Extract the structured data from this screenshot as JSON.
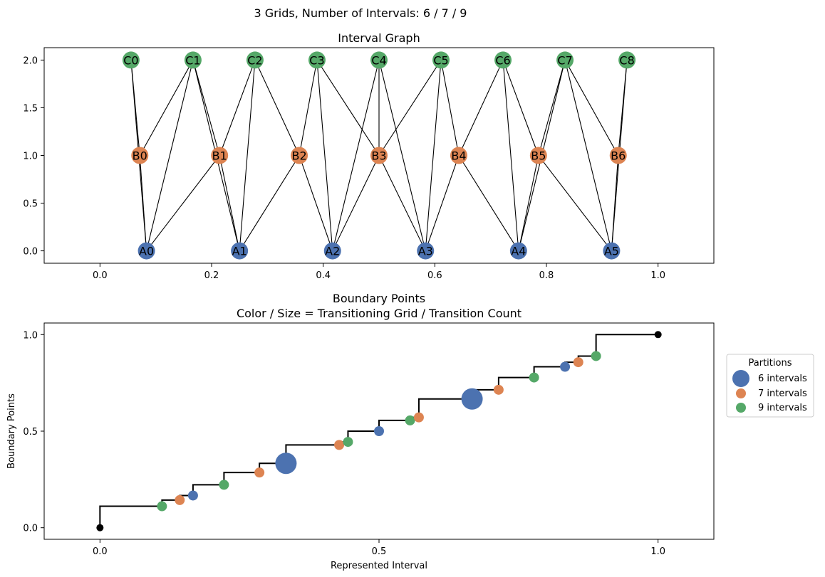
{
  "suptitle": "3 Grids, Number of Intervals: 6 / 7 / 9",
  "chart_data": [
    {
      "type": "scatter",
      "subtype": "graph",
      "title": "Interval Graph",
      "xlim": [
        -0.1,
        1.1
      ],
      "ylim": [
        -0.13,
        2.13
      ],
      "xticks": [
        0.0,
        0.2,
        0.4,
        0.6,
        0.8,
        1.0
      ],
      "yticks": [
        0.0,
        0.5,
        1.0,
        1.5,
        2.0
      ],
      "xtick_labels": [
        "0.0",
        "0.2",
        "0.4",
        "0.6",
        "0.8",
        "1.0"
      ],
      "ytick_labels": [
        "0.0",
        "0.5",
        "1.0",
        "1.5",
        "2.0"
      ],
      "grid": false,
      "colors": {
        "A": "#4c72b0",
        "B": "#dd8452",
        "C": "#55a868"
      },
      "nodes": [
        {
          "id": "A0",
          "x": 0.0833,
          "y": 0
        },
        {
          "id": "A1",
          "x": 0.25,
          "y": 0
        },
        {
          "id": "A2",
          "x": 0.4167,
          "y": 0
        },
        {
          "id": "A3",
          "x": 0.5833,
          "y": 0
        },
        {
          "id": "A4",
          "x": 0.75,
          "y": 0
        },
        {
          "id": "A5",
          "x": 0.9167,
          "y": 0
        },
        {
          "id": "B0",
          "x": 0.0714,
          "y": 1
        },
        {
          "id": "B1",
          "x": 0.2143,
          "y": 1
        },
        {
          "id": "B2",
          "x": 0.3571,
          "y": 1
        },
        {
          "id": "B3",
          "x": 0.5,
          "y": 1
        },
        {
          "id": "B4",
          "x": 0.6429,
          "y": 1
        },
        {
          "id": "B5",
          "x": 0.7857,
          "y": 1
        },
        {
          "id": "B6",
          "x": 0.9286,
          "y": 1
        },
        {
          "id": "C0",
          "x": 0.0556,
          "y": 2
        },
        {
          "id": "C1",
          "x": 0.1667,
          "y": 2
        },
        {
          "id": "C2",
          "x": 0.2778,
          "y": 2
        },
        {
          "id": "C3",
          "x": 0.3889,
          "y": 2
        },
        {
          "id": "C4",
          "x": 0.5,
          "y": 2
        },
        {
          "id": "C5",
          "x": 0.6111,
          "y": 2
        },
        {
          "id": "C6",
          "x": 0.7222,
          "y": 2
        },
        {
          "id": "C7",
          "x": 0.8333,
          "y": 2
        },
        {
          "id": "C8",
          "x": 0.9444,
          "y": 2
        }
      ],
      "edges": [
        [
          "A0",
          "B0"
        ],
        [
          "A0",
          "B1"
        ],
        [
          "A1",
          "B1"
        ],
        [
          "A1",
          "B2"
        ],
        [
          "A2",
          "B2"
        ],
        [
          "A2",
          "B3"
        ],
        [
          "A3",
          "B3"
        ],
        [
          "A3",
          "B4"
        ],
        [
          "A4",
          "B4"
        ],
        [
          "A4",
          "B5"
        ],
        [
          "A5",
          "B5"
        ],
        [
          "A5",
          "B6"
        ],
        [
          "A0",
          "C0"
        ],
        [
          "A0",
          "C1"
        ],
        [
          "A1",
          "C1"
        ],
        [
          "A1",
          "C2"
        ],
        [
          "A2",
          "C3"
        ],
        [
          "A2",
          "C4"
        ],
        [
          "A3",
          "C4"
        ],
        [
          "A3",
          "C5"
        ],
        [
          "A4",
          "C6"
        ],
        [
          "A4",
          "C7"
        ],
        [
          "A5",
          "C7"
        ],
        [
          "A5",
          "C8"
        ],
        [
          "B0",
          "C0"
        ],
        [
          "B0",
          "C1"
        ],
        [
          "B1",
          "C1"
        ],
        [
          "B1",
          "C2"
        ],
        [
          "B2",
          "C2"
        ],
        [
          "B2",
          "C3"
        ],
        [
          "B3",
          "C3"
        ],
        [
          "B3",
          "C4"
        ],
        [
          "B3",
          "C5"
        ],
        [
          "B4",
          "C5"
        ],
        [
          "B4",
          "C6"
        ],
        [
          "B5",
          "C6"
        ],
        [
          "B5",
          "C7"
        ],
        [
          "B6",
          "C7"
        ],
        [
          "B6",
          "C8"
        ]
      ]
    },
    {
      "type": "scatter",
      "subtype": "step",
      "title": "Boundary Points",
      "subtitle": "Color / Size = Transitioning Grid / Transition Count",
      "xlabel": "Represented Interval",
      "ylabel": "Boundary Points",
      "xlim": [
        -0.1,
        1.1
      ],
      "ylim": [
        -0.06,
        1.06
      ],
      "xticks": [
        0.0,
        0.5,
        1.0
      ],
      "yticks": [
        0.0,
        0.5,
        1.0
      ],
      "xtick_labels": [
        "0.0",
        "0.5",
        "1.0"
      ],
      "ytick_labels": [
        "0.0",
        "0.5",
        "1.0"
      ],
      "grid": false,
      "legend": {
        "title": "Partitions",
        "placement": "right",
        "entries": [
          {
            "label": "6 intervals",
            "color": "#4c72b0",
            "size": "large"
          },
          {
            "label": "7 intervals",
            "color": "#dd8452",
            "size": "small"
          },
          {
            "label": "9 intervals",
            "color": "#55a868",
            "size": "small"
          }
        ]
      },
      "step_points": [
        [
          0,
          0
        ],
        [
          0,
          0.1111
        ],
        [
          0.1111,
          0.1111
        ],
        [
          0.1111,
          0.1429
        ],
        [
          0.1429,
          0.1429
        ],
        [
          0.1429,
          0.1667
        ],
        [
          0.1667,
          0.1667
        ],
        [
          0.1667,
          0.2222
        ],
        [
          0.2222,
          0.2222
        ],
        [
          0.2222,
          0.2857
        ],
        [
          0.2857,
          0.2857
        ],
        [
          0.2857,
          0.3333
        ],
        [
          0.3333,
          0.3333
        ],
        [
          0.3333,
          0.4286
        ],
        [
          0.4286,
          0.4286
        ],
        [
          0.4286,
          0.4444
        ],
        [
          0.4444,
          0.4444
        ],
        [
          0.4444,
          0.5
        ],
        [
          0.5,
          0.5
        ],
        [
          0.5,
          0.5556
        ],
        [
          0.5556,
          0.5556
        ],
        [
          0.5556,
          0.5714
        ],
        [
          0.5714,
          0.5714
        ],
        [
          0.5714,
          0.6667
        ],
        [
          0.6667,
          0.6667
        ],
        [
          0.6667,
          0.7143
        ],
        [
          0.7143,
          0.7143
        ],
        [
          0.7143,
          0.7778
        ],
        [
          0.7778,
          0.7778
        ],
        [
          0.7778,
          0.8333
        ],
        [
          0.8333,
          0.8333
        ],
        [
          0.8333,
          0.8571
        ],
        [
          0.8571,
          0.8571
        ],
        [
          0.8571,
          0.8889
        ],
        [
          0.8889,
          0.8889
        ],
        [
          0.8889,
          1.0
        ],
        [
          1.0,
          1.0
        ]
      ],
      "endpoints": [
        [
          0,
          0
        ],
        [
          1,
          1
        ]
      ],
      "points": [
        {
          "x": 0.1111,
          "y": 0.1111,
          "grid": "9 intervals",
          "count": 1
        },
        {
          "x": 0.1429,
          "y": 0.1429,
          "grid": "7 intervals",
          "count": 1
        },
        {
          "x": 0.1667,
          "y": 0.1667,
          "grid": "6 intervals",
          "count": 1
        },
        {
          "x": 0.2222,
          "y": 0.2222,
          "grid": "9 intervals",
          "count": 1
        },
        {
          "x": 0.2857,
          "y": 0.2857,
          "grid": "7 intervals",
          "count": 1
        },
        {
          "x": 0.3333,
          "y": 0.3333,
          "grid": "6 intervals",
          "count": 2
        },
        {
          "x": 0.4286,
          "y": 0.4286,
          "grid": "7 intervals",
          "count": 1
        },
        {
          "x": 0.4444,
          "y": 0.4444,
          "grid": "9 intervals",
          "count": 1
        },
        {
          "x": 0.5,
          "y": 0.5,
          "grid": "6 intervals",
          "count": 1
        },
        {
          "x": 0.5556,
          "y": 0.5556,
          "grid": "9 intervals",
          "count": 1
        },
        {
          "x": 0.5714,
          "y": 0.5714,
          "grid": "7 intervals",
          "count": 1
        },
        {
          "x": 0.6667,
          "y": 0.6667,
          "grid": "6 intervals",
          "count": 2
        },
        {
          "x": 0.7143,
          "y": 0.7143,
          "grid": "7 intervals",
          "count": 1
        },
        {
          "x": 0.7778,
          "y": 0.7778,
          "grid": "9 intervals",
          "count": 1
        },
        {
          "x": 0.8333,
          "y": 0.8333,
          "grid": "6 intervals",
          "count": 1
        },
        {
          "x": 0.8571,
          "y": 0.8571,
          "grid": "7 intervals",
          "count": 1
        },
        {
          "x": 0.8889,
          "y": 0.8889,
          "grid": "9 intervals",
          "count": 1
        }
      ],
      "colors": {
        "6 intervals": "#4c72b0",
        "7 intervals": "#dd8452",
        "9 intervals": "#55a868",
        "endpoint": "#000000"
      }
    }
  ]
}
